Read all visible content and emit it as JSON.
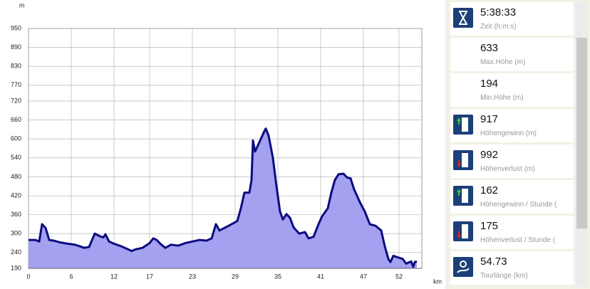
{
  "chart_data": {
    "type": "area",
    "y_unit": "m",
    "x_unit": "km",
    "xlim": [
      0,
      55.2
    ],
    "xticks": [
      0,
      6,
      12,
      17,
      23,
      29,
      35,
      41,
      47,
      52
    ],
    "ylim": [
      190,
      950
    ],
    "yticks": [
      190,
      240,
      300,
      360,
      420,
      480,
      540,
      600,
      660,
      720,
      770,
      830,
      890,
      950
    ],
    "grid": true,
    "color": "#0c0c80",
    "fill": "#a3a1f0",
    "x": [
      0,
      1,
      1.5,
      1.9,
      2.4,
      2.9,
      3.5,
      4.5,
      5.5,
      6.5,
      7.2,
      7.8,
      8.5,
      9.3,
      10,
      10.5,
      10.8,
      11.3,
      12,
      13,
      13.5,
      14,
      14.5,
      15,
      16,
      17,
      17.5,
      18,
      18.5,
      19.2,
      20,
      21,
      22,
      23,
      24,
      25,
      25.7,
      26.3,
      26.8,
      27.5,
      28.5,
      29.3,
      29.8,
      30.3,
      31,
      31.3,
      31.5,
      31.8,
      32.2,
      32.6,
      33,
      33.3,
      33.7,
      34.3,
      34.8,
      35.3,
      35.7,
      36.2,
      36.7,
      37.2,
      38,
      38.8,
      39.3,
      40,
      40.7,
      41.2,
      42,
      42.5,
      43,
      43.5,
      44.2,
      44.7,
      45.2,
      45.7,
      46.5,
      47.2,
      47.9,
      48.7,
      49.5,
      50,
      50.5,
      50.8,
      51.2,
      51.8,
      52.5,
      53,
      53.7,
      54,
      54.2,
      54.5
    ],
    "values": [
      280,
      280,
      275,
      330,
      318,
      280,
      278,
      272,
      268,
      265,
      260,
      255,
      258,
      300,
      292,
      288,
      298,
      275,
      268,
      260,
      255,
      250,
      245,
      250,
      255,
      270,
      285,
      280,
      268,
      255,
      265,
      262,
      270,
      275,
      280,
      278,
      285,
      330,
      310,
      318,
      330,
      340,
      380,
      430,
      430,
      470,
      595,
      560,
      580,
      600,
      620,
      633,
      610,
      540,
      450,
      370,
      345,
      362,
      350,
      320,
      300,
      305,
      285,
      290,
      330,
      355,
      380,
      430,
      470,
      488,
      490,
      478,
      475,
      440,
      400,
      370,
      330,
      325,
      310,
      260,
      220,
      210,
      230,
      225,
      220,
      205,
      212,
      195,
      210,
      212
    ]
  },
  "stats": [
    {
      "value": "5:38:33",
      "label": "Zeit (h:m:s)"
    },
    {
      "value": "633",
      "label": "Max.Höhe (m)"
    },
    {
      "value": "194",
      "label": "Min.Höhe (m)"
    },
    {
      "value": "917",
      "label": "Höhengewinn (m)"
    },
    {
      "value": "992",
      "label": "Höhenverlust (m)"
    },
    {
      "value": "162",
      "label": "Höhengewinn  /  Stunde ("
    },
    {
      "value": "175",
      "label": "Höhenverlust  /  Stunde ("
    },
    {
      "value": "54.73",
      "label": "Tourlänge (km)"
    }
  ]
}
